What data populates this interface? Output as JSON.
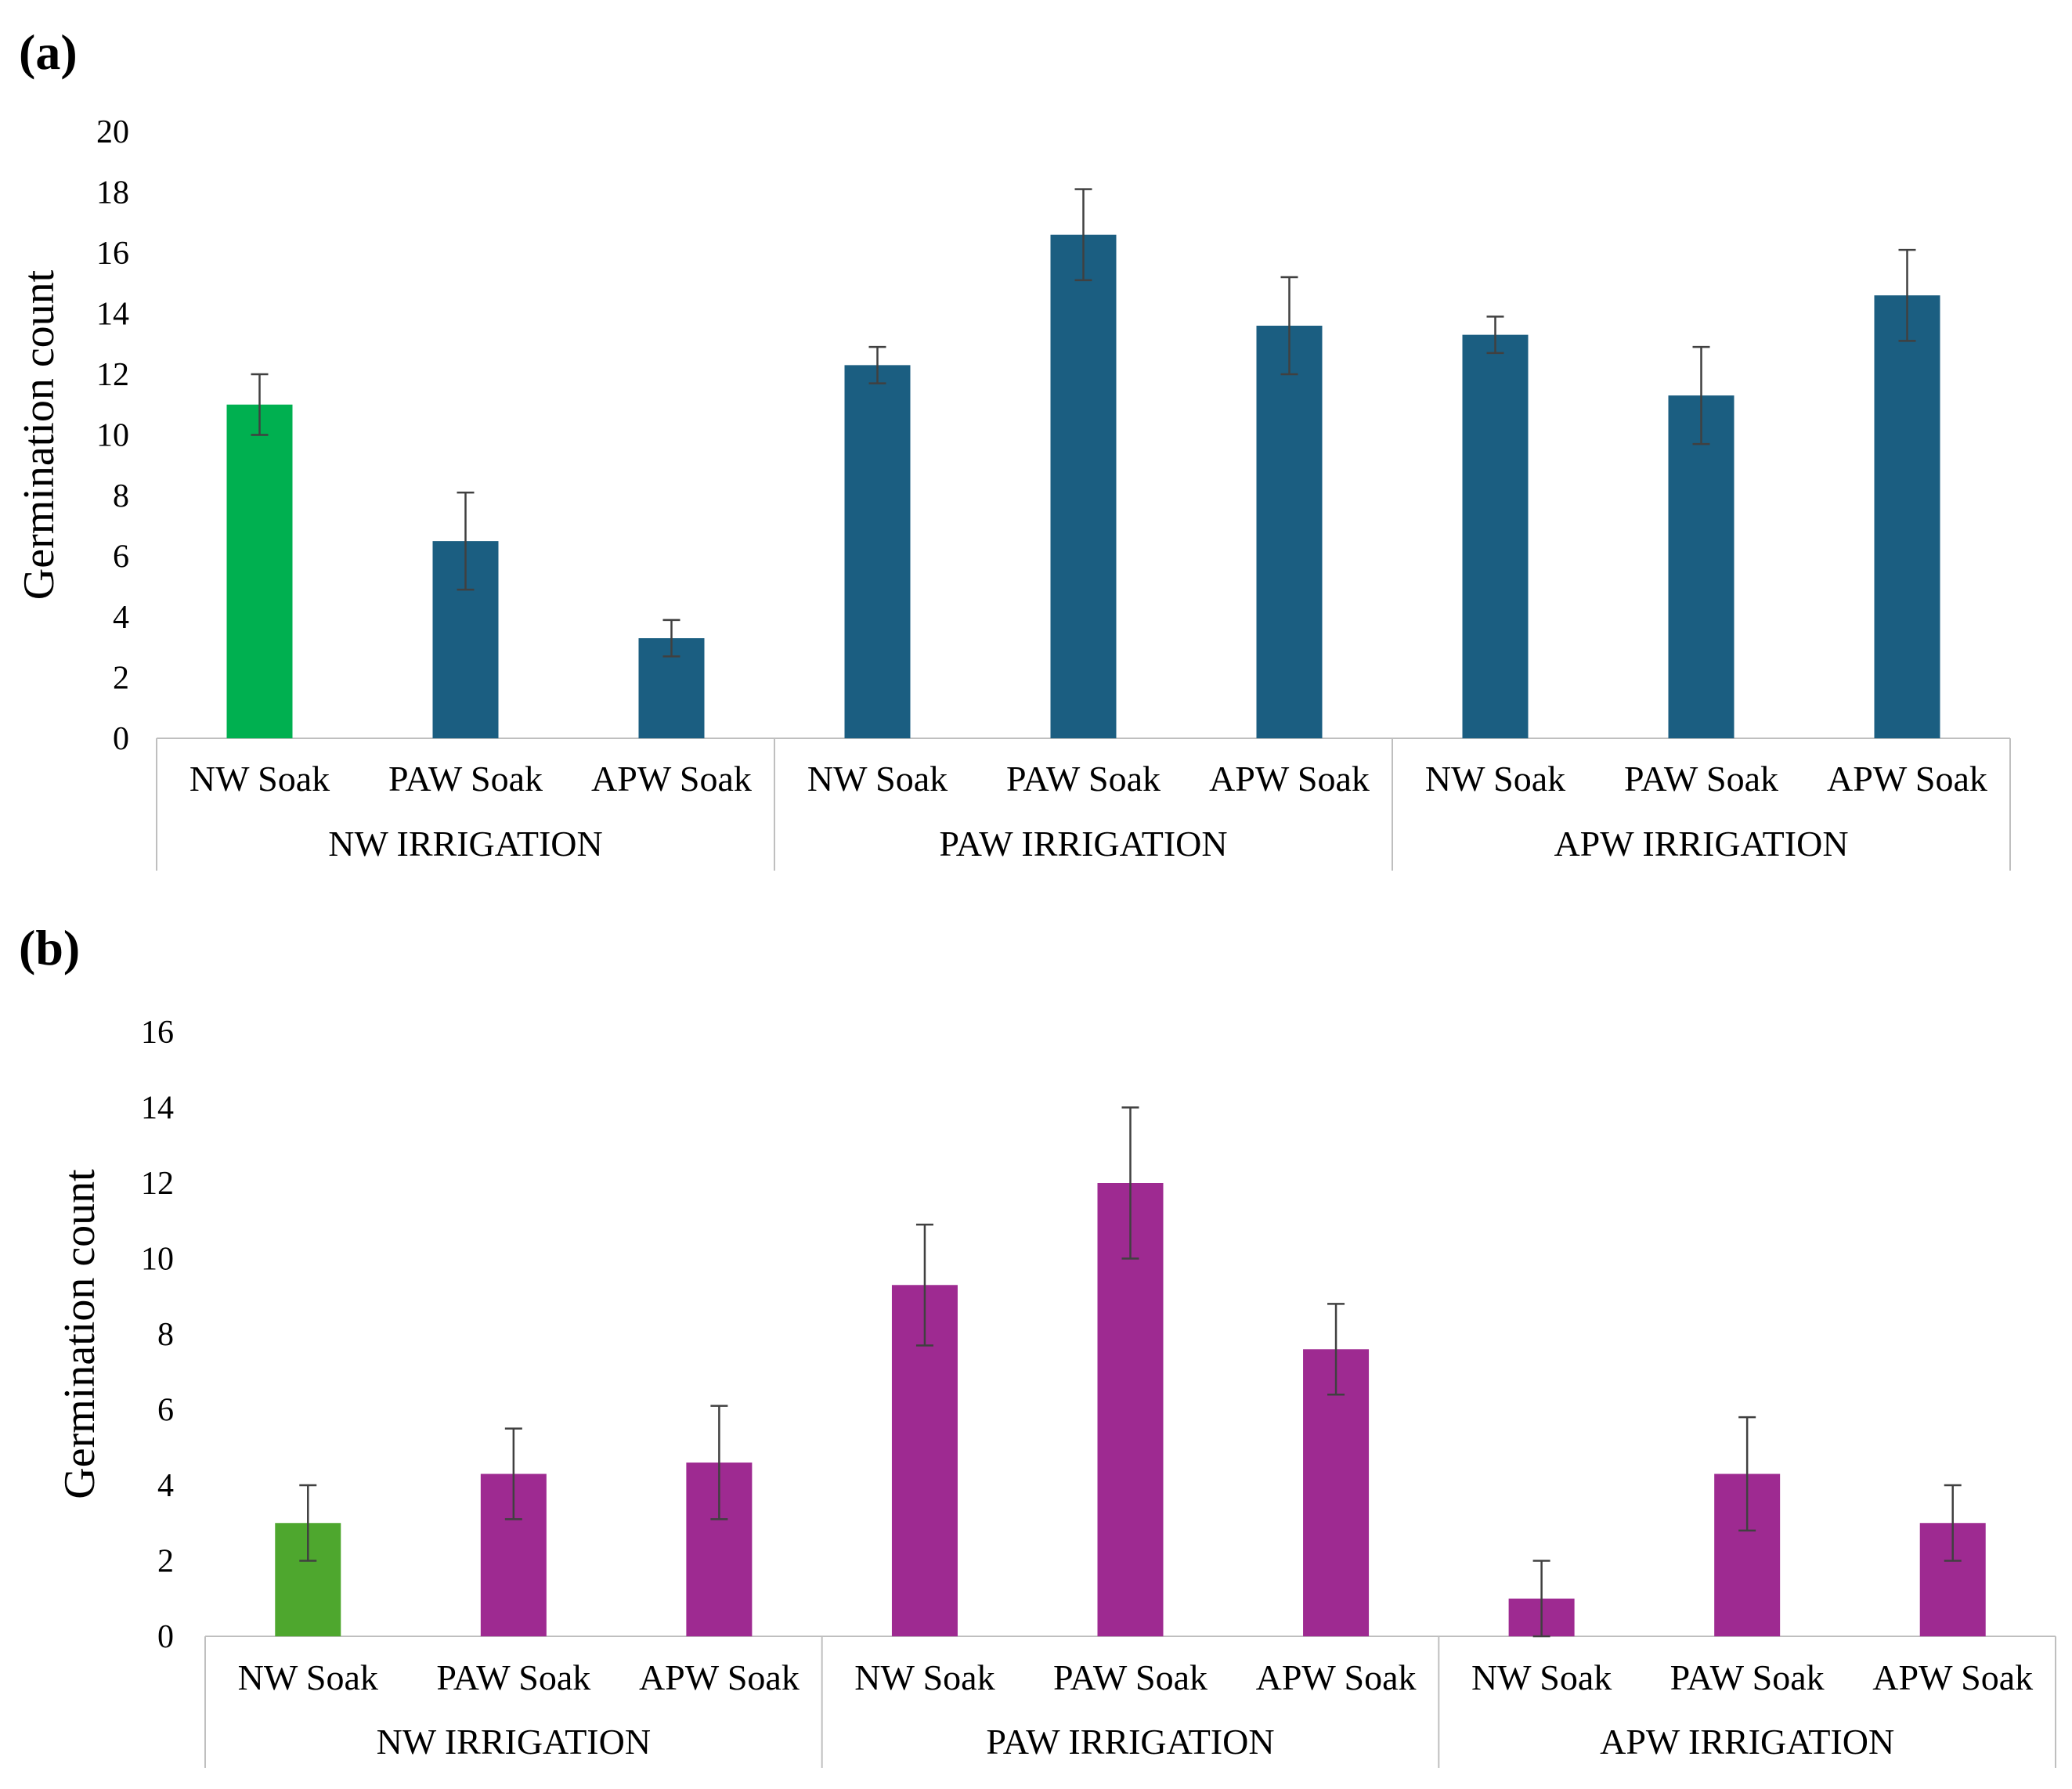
{
  "chart_data": [
    {
      "panel_label": "(a)",
      "type": "bar",
      "ylabel": "Germination count",
      "ylim": [
        0,
        20
      ],
      "yticks": [
        0,
        2,
        4,
        6,
        8,
        10,
        12,
        14,
        16,
        18,
        20
      ],
      "groups": [
        {
          "name": "NW IRRIGATION",
          "categories": [
            "NW Soak",
            "PAW Soak",
            "APW Soak"
          ],
          "values": [
            11.0,
            6.5,
            3.3
          ],
          "errors": [
            1.0,
            1.6,
            0.6
          ],
          "colors": [
            "#00b050",
            "#1b5e81",
            "#1b5e81"
          ]
        },
        {
          "name": "PAW IRRIGATION",
          "categories": [
            "NW Soak",
            "PAW Soak",
            "APW Soak"
          ],
          "values": [
            12.3,
            16.6,
            13.6
          ],
          "errors": [
            0.6,
            1.5,
            1.6
          ],
          "colors": [
            "#1b5e81",
            "#1b5e81",
            "#1b5e81"
          ]
        },
        {
          "name": "APW IRRIGATION",
          "categories": [
            "NW Soak",
            "PAW Soak",
            "APW Soak"
          ],
          "values": [
            13.3,
            11.3,
            14.6
          ],
          "errors": [
            0.6,
            1.6,
            1.5
          ],
          "colors": [
            "#1b5e81",
            "#1b5e81",
            "#1b5e81"
          ]
        }
      ]
    },
    {
      "panel_label": "(b)",
      "type": "bar",
      "ylabel": "Germination count",
      "ylim": [
        0,
        16
      ],
      "yticks": [
        0,
        2,
        4,
        6,
        8,
        10,
        12,
        14,
        16
      ],
      "groups": [
        {
          "name": "NW IRRIGATION",
          "categories": [
            "NW Soak",
            "PAW Soak",
            "APW Soak"
          ],
          "values": [
            3.0,
            4.3,
            4.6
          ],
          "errors": [
            1.0,
            1.2,
            1.5
          ],
          "colors": [
            "#4ea72e",
            "#9e2a91",
            "#9e2a91"
          ]
        },
        {
          "name": "PAW IRRIGATION",
          "categories": [
            "NW Soak",
            "PAW Soak",
            "APW Soak"
          ],
          "values": [
            9.3,
            12.0,
            7.6
          ],
          "errors": [
            1.6,
            2.0,
            1.2
          ],
          "colors": [
            "#9e2a91",
            "#9e2a91",
            "#9e2a91"
          ]
        },
        {
          "name": "APW IRRIGATION",
          "categories": [
            "NW Soak",
            "PAW Soak",
            "APW Soak"
          ],
          "values": [
            1.0,
            4.3,
            3.0
          ],
          "errors": [
            1.0,
            1.5,
            1.0
          ],
          "colors": [
            "#9e2a91",
            "#9e2a91",
            "#9e2a91"
          ]
        }
      ]
    }
  ]
}
